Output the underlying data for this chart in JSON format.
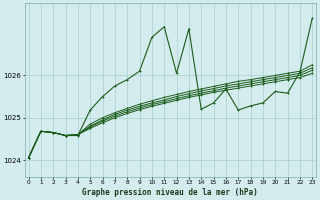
{
  "title": "Graphe pression niveau de la mer (hPa)",
  "background_color": "#d4ecee",
  "grid_color": "#aacece",
  "line_color": "#1a5c1a",
  "ylim": [
    1023.6,
    1027.7
  ],
  "xlim": [
    -0.3,
    23.3
  ],
  "yticks": [
    1024,
    1025,
    1026
  ],
  "xticks": [
    0,
    1,
    2,
    3,
    4,
    5,
    6,
    7,
    8,
    9,
    10,
    11,
    12,
    13,
    14,
    15,
    16,
    17,
    18,
    19,
    20,
    21,
    22,
    23
  ],
  "series1": [
    1024.05,
    1024.68,
    1024.65,
    1024.58,
    1024.58,
    1025.18,
    1025.5,
    1025.75,
    1025.9,
    1026.1,
    1026.9,
    1027.15,
    1026.05,
    1027.1,
    1025.2,
    1025.35,
    1025.68,
    1025.18,
    1025.28,
    1025.35,
    1025.62,
    1025.58,
    1026.08,
    1027.35
  ],
  "series2": [
    1024.05,
    1024.68,
    1024.65,
    1024.58,
    1024.6,
    1024.85,
    1025.0,
    1025.12,
    1025.22,
    1025.32,
    1025.4,
    1025.48,
    1025.55,
    1025.62,
    1025.68,
    1025.74,
    1025.8,
    1025.86,
    1025.9,
    1025.95,
    1026.0,
    1026.05,
    1026.1,
    1026.25
  ],
  "series3": [
    1024.05,
    1024.68,
    1024.65,
    1024.58,
    1024.6,
    1024.8,
    1024.95,
    1025.08,
    1025.18,
    1025.27,
    1025.35,
    1025.42,
    1025.5,
    1025.57,
    1025.63,
    1025.69,
    1025.75,
    1025.8,
    1025.85,
    1025.9,
    1025.95,
    1026.0,
    1026.05,
    1026.18
  ],
  "series4": [
    1024.05,
    1024.68,
    1024.65,
    1024.58,
    1024.6,
    1024.78,
    1024.92,
    1025.04,
    1025.14,
    1025.23,
    1025.31,
    1025.38,
    1025.45,
    1025.52,
    1025.58,
    1025.64,
    1025.7,
    1025.75,
    1025.8,
    1025.85,
    1025.9,
    1025.95,
    1026.0,
    1026.12
  ],
  "series5": [
    1024.05,
    1024.68,
    1024.65,
    1024.58,
    1024.6,
    1024.75,
    1024.88,
    1025.0,
    1025.1,
    1025.19,
    1025.27,
    1025.34,
    1025.41,
    1025.48,
    1025.54,
    1025.6,
    1025.65,
    1025.7,
    1025.75,
    1025.8,
    1025.85,
    1025.9,
    1025.95,
    1026.05
  ]
}
